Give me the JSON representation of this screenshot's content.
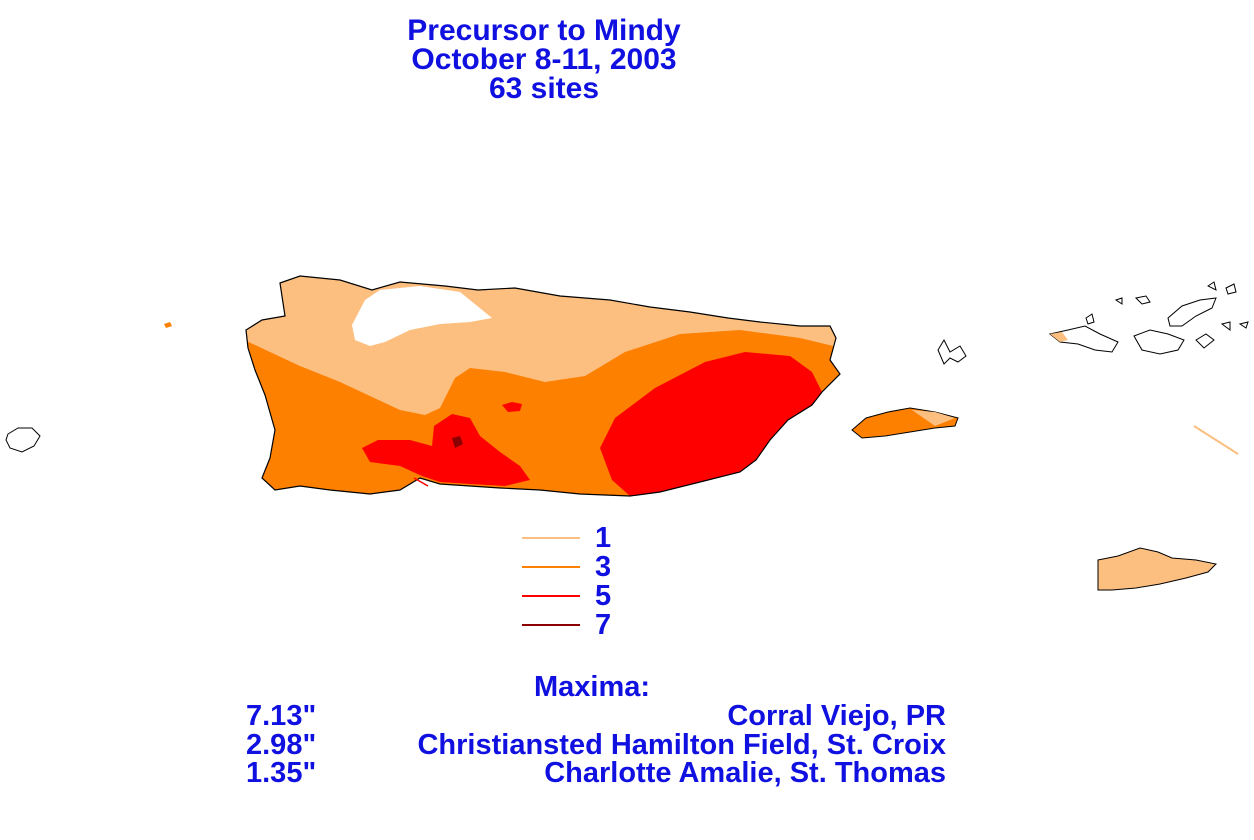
{
  "title": {
    "line1": "Precursor to Mindy",
    "line2": "October 8-11, 2003",
    "line3": "63 sites"
  },
  "legend": {
    "items": [
      {
        "label": "1",
        "color": "#fdbf80"
      },
      {
        "label": "3",
        "color": "#fd8000"
      },
      {
        "label": "5",
        "color": "#ff0000"
      },
      {
        "label": "7",
        "color": "#8b0000"
      }
    ]
  },
  "maxima": {
    "title": "Maxima:",
    "rows": [
      {
        "value": "7.13\"",
        "site": "Corral Viejo, PR"
      },
      {
        "value": "2.98\"",
        "site": "Christiansted Hamilton Field, St. Croix"
      },
      {
        "value": "1.35\"",
        "site": "Charlotte Amalie, St. Thomas"
      }
    ]
  },
  "colors": {
    "text": "#1010e0",
    "coast": "#000000",
    "background": "#ffffff"
  }
}
